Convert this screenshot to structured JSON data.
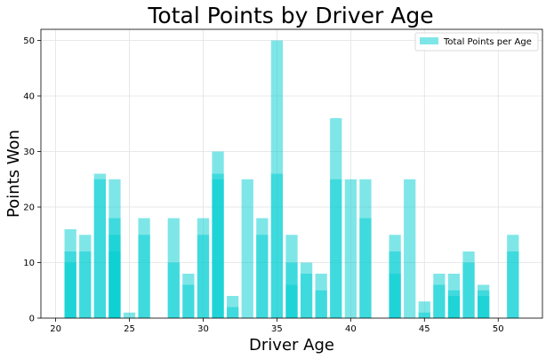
{
  "chart_data": {
    "type": "bar",
    "title": "Total Points by Driver Age",
    "xlabel": "Driver Age",
    "ylabel": "Points Won",
    "xlim": [
      19,
      53
    ],
    "ylim": [
      0,
      52
    ],
    "x_ticks": [
      20,
      25,
      30,
      35,
      40,
      45,
      50
    ],
    "y_ticks": [
      0,
      10,
      20,
      30,
      40,
      50
    ],
    "grid": true,
    "legend_position": "top-right",
    "color": "#00ced1",
    "series": [
      {
        "name": "Total Points per Age",
        "stacked_segments": [
          {
            "age": 21,
            "values": [
              10,
              12,
              16
            ]
          },
          {
            "age": 22,
            "values": [
              12,
              15
            ]
          },
          {
            "age": 23,
            "values": [
              25,
              26
            ]
          },
          {
            "age": 24,
            "values": [
              12,
              15,
              18,
              25
            ]
          },
          {
            "age": 25,
            "values": [
              1
            ]
          },
          {
            "age": 26,
            "values": [
              15,
              18
            ]
          },
          {
            "age": 28,
            "values": [
              10,
              18
            ]
          },
          {
            "age": 29,
            "values": [
              6,
              8
            ]
          },
          {
            "age": 30,
            "values": [
              15,
              18
            ]
          },
          {
            "age": 31,
            "values": [
              25,
              26,
              30
            ]
          },
          {
            "age": 32,
            "values": [
              2,
              4
            ]
          },
          {
            "age": 33,
            "values": [
              25
            ]
          },
          {
            "age": 34,
            "values": [
              15,
              18
            ]
          },
          {
            "age": 35,
            "values": [
              26,
              50
            ]
          },
          {
            "age": 36,
            "values": [
              6,
              10,
              15
            ]
          },
          {
            "age": 37,
            "values": [
              8,
              10
            ]
          },
          {
            "age": 38,
            "values": [
              5,
              8
            ]
          },
          {
            "age": 39,
            "values": [
              25,
              36
            ]
          },
          {
            "age": 40,
            "values": [
              25
            ]
          },
          {
            "age": 41,
            "values": [
              18,
              25
            ]
          },
          {
            "age": 43,
            "values": [
              8,
              12,
              15
            ]
          },
          {
            "age": 44,
            "values": [
              25
            ]
          },
          {
            "age": 45,
            "values": [
              1,
              3
            ]
          },
          {
            "age": 46,
            "values": [
              6,
              8
            ]
          },
          {
            "age": 47,
            "values": [
              4,
              5,
              8
            ]
          },
          {
            "age": 48,
            "values": [
              10,
              12
            ]
          },
          {
            "age": 49,
            "values": [
              4,
              5,
              6
            ]
          },
          {
            "age": 51,
            "values": [
              12,
              15
            ]
          }
        ]
      }
    ]
  }
}
